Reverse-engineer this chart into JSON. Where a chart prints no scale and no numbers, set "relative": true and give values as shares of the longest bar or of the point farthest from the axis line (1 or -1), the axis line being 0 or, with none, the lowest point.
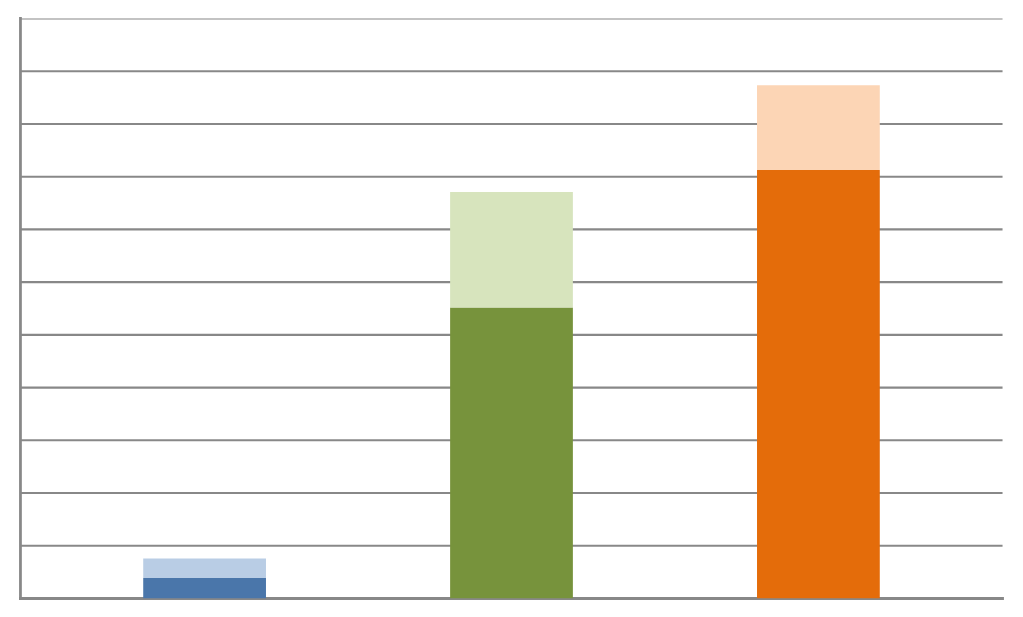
{
  "chart_data": {
    "type": "bar",
    "stacked": true,
    "relative": true,
    "grid": "y",
    "categories": [
      null,
      null,
      null
    ],
    "series": [
      {
        "colors": [
          "#4a76aa",
          "#77933c",
          "#e46c0a"
        ],
        "values": [
          0.04,
          0.567,
          0.835
        ]
      },
      {
        "colors": [
          "#b9cde5",
          "#d7e4bd",
          "#fcd5b5"
        ],
        "values": [
          0.038,
          0.225,
          0.165
        ]
      }
    ]
  }
}
